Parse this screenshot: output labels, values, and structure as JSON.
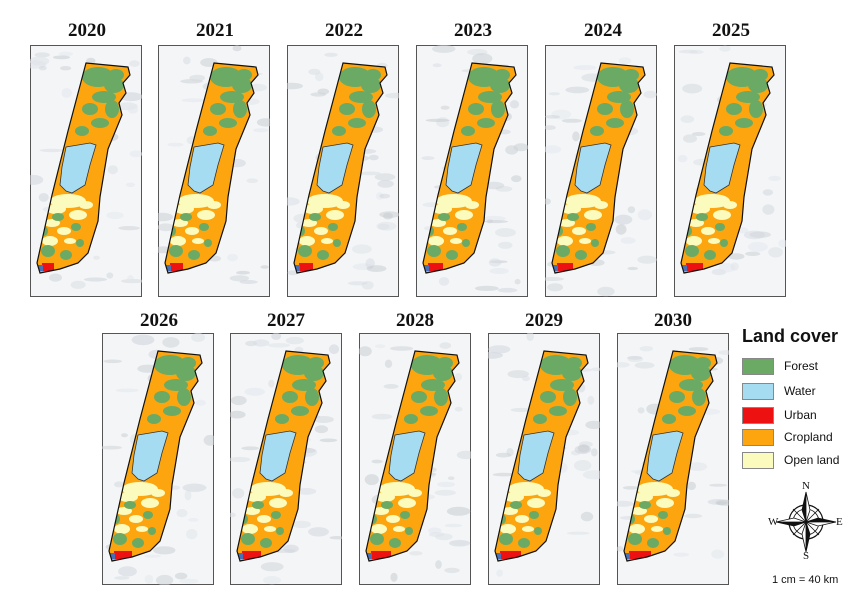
{
  "years": [
    "2020",
    "2021",
    "2022",
    "2023",
    "2024",
    "2025",
    "2026",
    "2027",
    "2028",
    "2029",
    "2030"
  ],
  "legend": {
    "title": "Land cover",
    "items": [
      {
        "label": "Forest",
        "color": "#6aaa64"
      },
      {
        "label": "Water",
        "color": "#a6dcf2"
      },
      {
        "label": "Urban",
        "color": "#ee1111"
      },
      {
        "label": "Cropland",
        "color": "#fca50f"
      },
      {
        "label": "Open land",
        "color": "#fbfbbe"
      }
    ]
  },
  "compass": {
    "n": "N",
    "s": "S",
    "e": "E",
    "w": "W"
  },
  "scale": "1 cm = 40 km"
}
